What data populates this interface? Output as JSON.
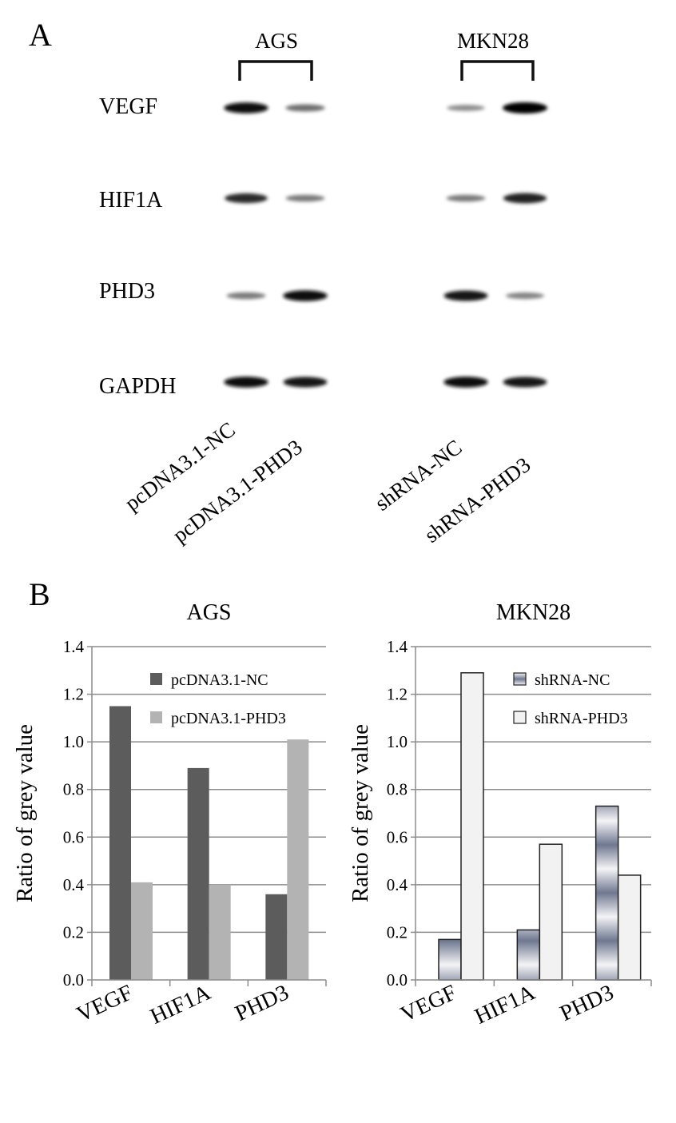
{
  "panel_a": {
    "letter": "A",
    "groups": [
      {
        "name": "AGS",
        "lanes": [
          "pcDNA3.1-NC",
          "pcDNA3.1-PHD3"
        ]
      },
      {
        "name": "MKN28",
        "lanes": [
          "shRNA-NC",
          "shRNA-PHD3"
        ]
      }
    ],
    "rows": [
      "VEGF",
      "HIF1A",
      "PHD3",
      "GAPDH"
    ],
    "band_intensity": {
      "AGS": {
        "VEGF": [
          0.95,
          0.45
        ],
        "HIF1A": [
          0.8,
          0.4
        ],
        "PHD3": [
          0.4,
          0.95
        ],
        "GAPDH": [
          0.95,
          0.9
        ]
      },
      "MKN28": {
        "VEGF": [
          0.3,
          1.0
        ],
        "HIF1A": [
          0.4,
          0.85
        ],
        "PHD3": [
          0.9,
          0.35
        ],
        "GAPDH": [
          0.95,
          0.9
        ]
      }
    }
  },
  "panel_b": {
    "letter": "B"
  },
  "chart_data": [
    {
      "type": "bar",
      "title": "AGS",
      "categories": [
        "VEGF",
        "HIF1A",
        "PHD3"
      ],
      "series": [
        {
          "name": "pcDNA3.1-NC",
          "values": [
            1.15,
            0.89,
            0.36
          ],
          "color": "#5c5c5c"
        },
        {
          "name": "pcDNA3.1-PHD3",
          "values": [
            0.41,
            0.4,
            1.01
          ],
          "color": "#b3b3b3"
        }
      ],
      "ylabel": "Ratio of grey value",
      "ylim": [
        0,
        1.4
      ],
      "yticks": [
        "0.0",
        "0.2",
        "0.4",
        "0.6",
        "0.8",
        "1.0",
        "1.2",
        "1.4"
      ],
      "grid": true,
      "legend": "top-right"
    },
    {
      "type": "bar",
      "title": "MKN28",
      "categories": [
        "VEGF",
        "HIF1A",
        "PHD3"
      ],
      "series": [
        {
          "name": "shRNA-NC",
          "values": [
            0.17,
            0.21,
            0.73
          ],
          "color": "#8a93a8"
        },
        {
          "name": "shRNA-PHD3",
          "values": [
            1.29,
            0.57,
            0.44
          ],
          "color": "#f2f2f2"
        }
      ],
      "ylabel": "Ratio of grey value",
      "ylim": [
        0,
        1.4
      ],
      "yticks": [
        "0.0",
        "0.2",
        "0.4",
        "0.6",
        "0.8",
        "1.0",
        "1.2",
        "1.4"
      ],
      "grid": true,
      "legend": "top-right"
    }
  ]
}
